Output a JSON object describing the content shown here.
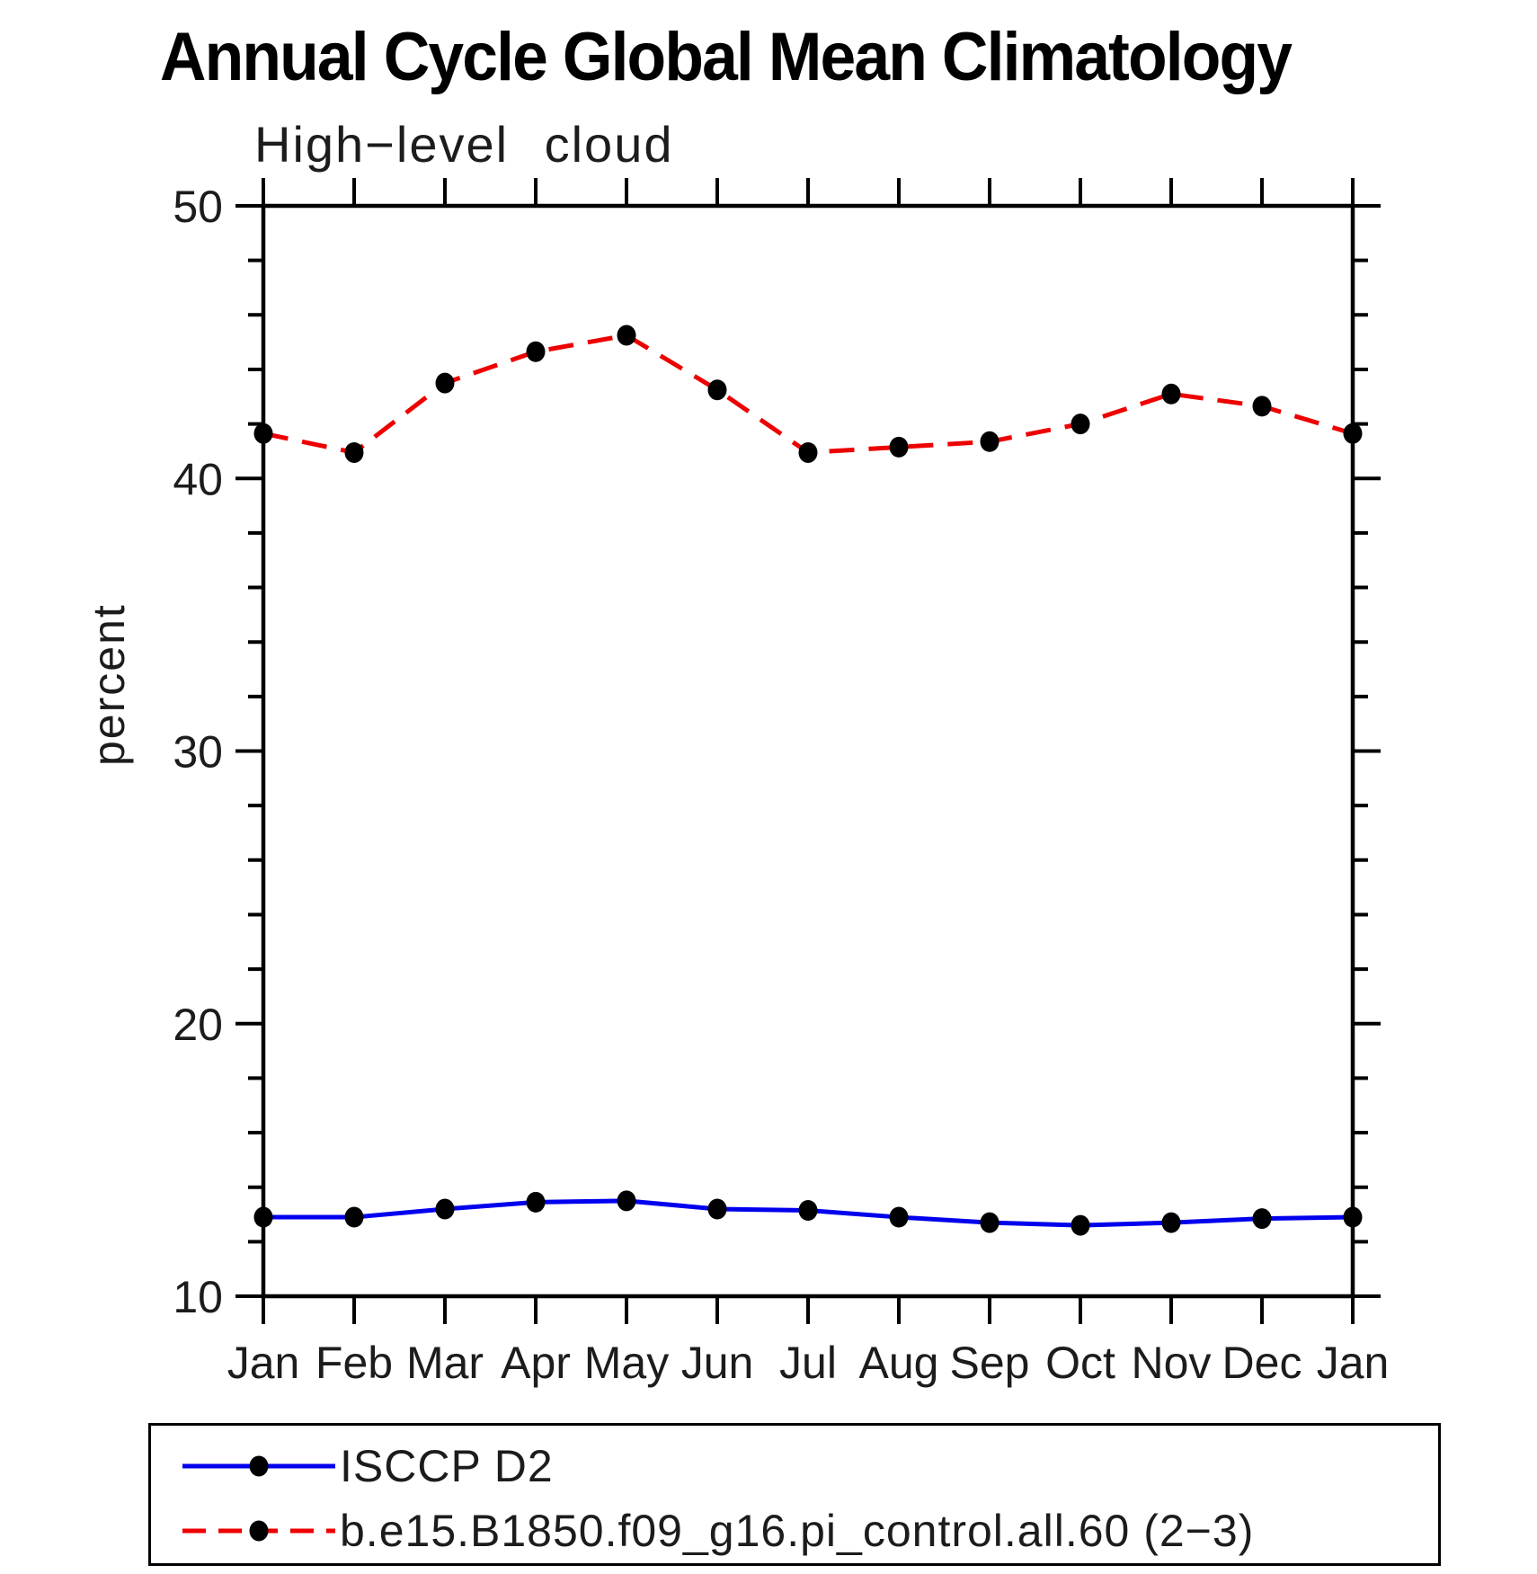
{
  "title": "Annual Cycle Global Mean Climatology",
  "subtitle": "High−level cloud",
  "ylabel": "percent",
  "chart_data": {
    "type": "line",
    "title": "Annual Cycle Global Mean Climatology",
    "subtitle": "High−level cloud",
    "xlabel": "",
    "ylabel": "percent",
    "categories": [
      "Jan",
      "Feb",
      "Mar",
      "Apr",
      "May",
      "Jun",
      "Jul",
      "Aug",
      "Sep",
      "Oct",
      "Nov",
      "Dec",
      "Jan"
    ],
    "series": [
      {
        "name": "ISCCP D2",
        "color": "#0000ee",
        "line_style": "solid",
        "marker": "filled-circle",
        "marker_color": "#000000",
        "values": [
          12.9,
          12.9,
          13.2,
          13.45,
          13.5,
          13.2,
          13.15,
          12.9,
          12.7,
          12.6,
          12.7,
          12.85,
          12.9
        ]
      },
      {
        "name": "b.e15.B1850.f09_g16.pi_control.all.60 (2−3)",
        "color": "#ee0000",
        "line_style": "dashed",
        "marker": "filled-circle",
        "marker_color": "#000000",
        "values": [
          41.65,
          40.95,
          43.5,
          44.65,
          45.25,
          43.25,
          40.95,
          41.15,
          41.35,
          42.0,
          43.1,
          42.65,
          41.65
        ]
      }
    ],
    "ylim": [
      10,
      50
    ],
    "yticks": [
      10,
      20,
      30,
      40,
      50
    ],
    "y_minor_step": 2,
    "grid": false,
    "legend_position": "bottom",
    "axis_color": "#000000"
  }
}
